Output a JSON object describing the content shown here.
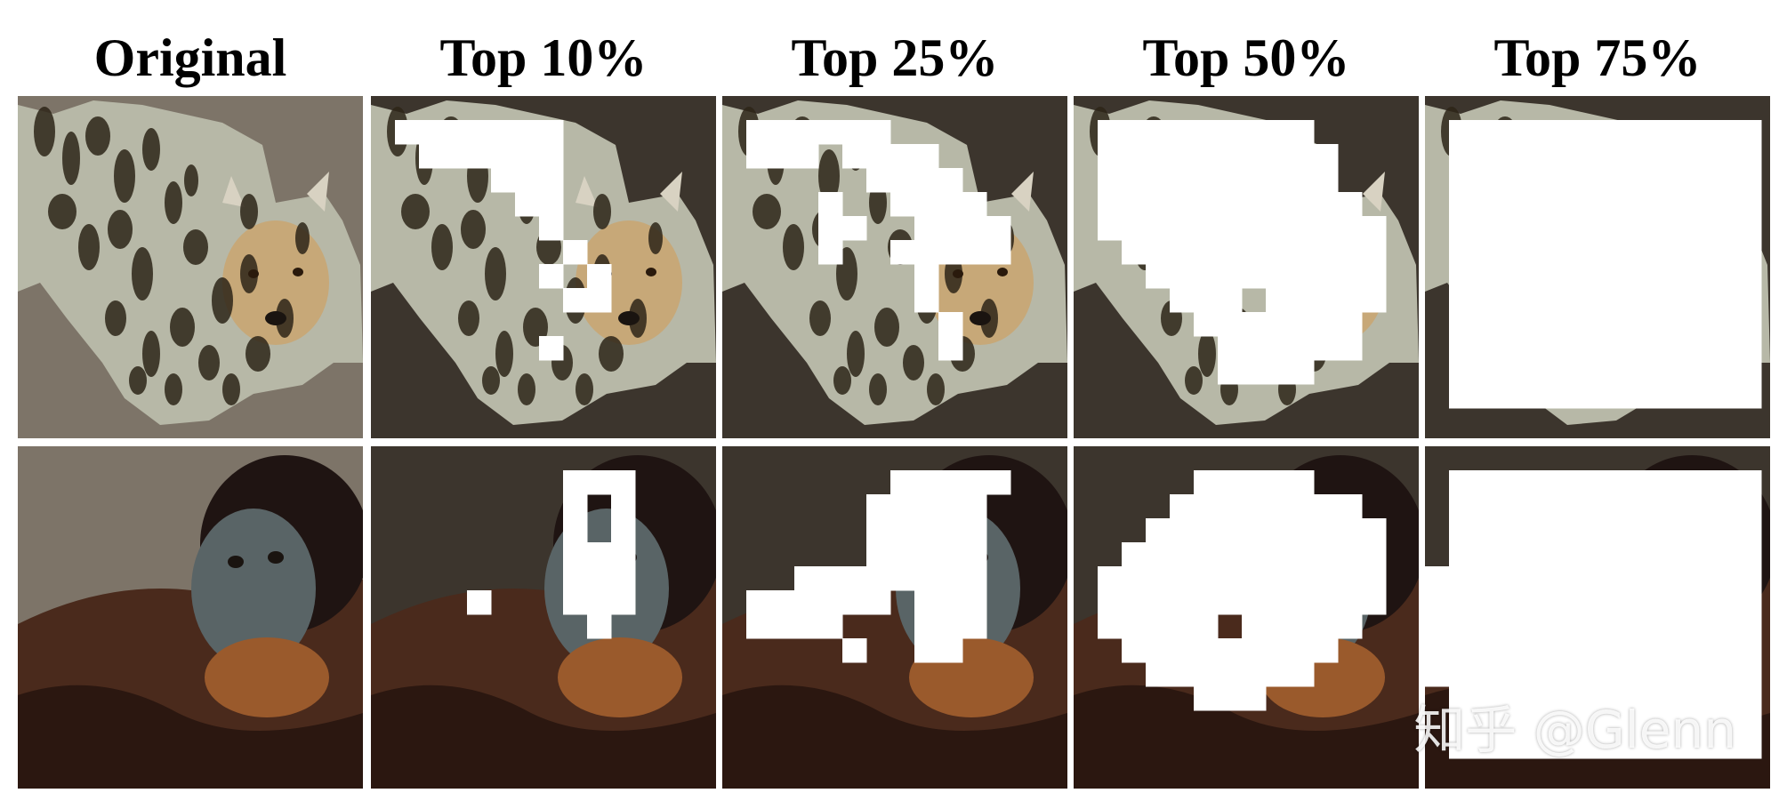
{
  "figure": {
    "columns": [
      {
        "key": "original",
        "label": "Original"
      },
      {
        "key": "top10",
        "label": "Top 10%"
      },
      {
        "key": "top25",
        "label": "Top 25%"
      },
      {
        "key": "top50",
        "label": "Top 50%"
      },
      {
        "key": "top75",
        "label": "Top 75%"
      }
    ],
    "rows": [
      {
        "key": "cheetah",
        "background_original": "#7d7468",
        "background_masked": "#3c352d",
        "subject_color": "#b7b8a7",
        "spot_color": "#2d2418"
      },
      {
        "key": "orangutan",
        "background_original": "#7d7468",
        "background_masked": "#3c352d",
        "subject_color": "#4a2a1c",
        "face_color": "#596466"
      }
    ],
    "mask_color": "#ffffff"
  },
  "watermark": "知乎 @Glenn"
}
